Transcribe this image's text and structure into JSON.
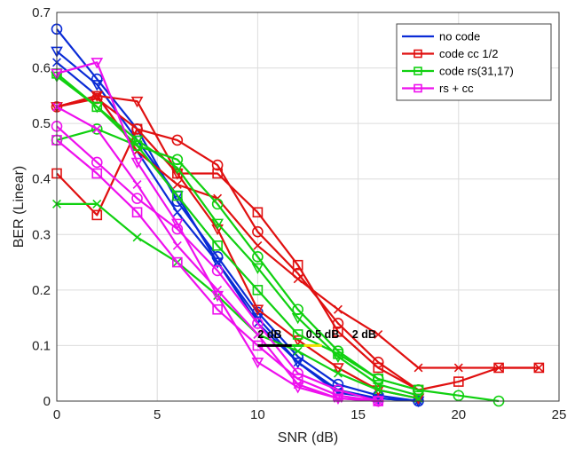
{
  "chart_data": {
    "type": "line",
    "xlabel": "SNR (dB)",
    "ylabel": "BER (Linear)",
    "xlim": [
      0,
      25
    ],
    "ylim": [
      0,
      0.7
    ],
    "x_ticks": [
      "0",
      "5",
      "10",
      "15",
      "20",
      "25"
    ],
    "y_ticks": [
      "0",
      "0.1",
      "0.2",
      "0.3",
      "0.4",
      "0.5",
      "0.6",
      "0.7"
    ],
    "grid": true,
    "legend_position": "top-right",
    "series": [
      {
        "name": "no code",
        "color": "#0a2bd6",
        "marker": "circle",
        "x": [
          0,
          2,
          4,
          6,
          8,
          10,
          12,
          14,
          16,
          18
        ],
        "y": [
          0.67,
          0.58,
          0.49,
          0.36,
          0.26,
          0.16,
          0.08,
          0.03,
          0.01,
          0.0
        ]
      },
      {
        "name": "no code",
        "color": "#0a2bd6",
        "marker": "triangle-down",
        "x": [
          0,
          2,
          4,
          6,
          8,
          10,
          12,
          14,
          16,
          18
        ],
        "y": [
          0.63,
          0.57,
          0.47,
          0.37,
          0.25,
          0.15,
          0.07,
          0.02,
          0.005,
          0.0
        ]
      },
      {
        "name": "no code",
        "color": "#0a2bd6",
        "marker": "x",
        "x": [
          0,
          2,
          4,
          6,
          8,
          10,
          12,
          14,
          16,
          18
        ],
        "y": [
          0.61,
          0.55,
          0.45,
          0.34,
          0.25,
          0.14,
          0.07,
          0.015,
          0.005,
          0.0
        ]
      },
      {
        "name": "code cc 1/2",
        "color": "#e01010",
        "marker": "square",
        "x": [
          0,
          2,
          4,
          6,
          8,
          10,
          12,
          14,
          16,
          18,
          20,
          22,
          24
        ],
        "y": [
          0.41,
          0.335,
          0.49,
          0.41,
          0.41,
          0.34,
          0.245,
          0.125,
          0.06,
          0.02,
          0.035,
          0.06,
          0.06
        ]
      },
      {
        "name": "code cc 1/2",
        "color": "#e01010",
        "marker": "circle",
        "x": [
          0,
          2,
          4,
          6,
          8,
          10,
          12,
          14,
          16,
          18
        ],
        "y": [
          0.53,
          0.545,
          0.49,
          0.47,
          0.425,
          0.305,
          0.23,
          0.14,
          0.07,
          0.02
        ]
      },
      {
        "name": "code cc 1/2",
        "color": "#e01010",
        "marker": "triangle-down",
        "x": [
          0,
          2,
          4,
          6,
          8,
          10,
          12,
          14,
          16,
          18
        ],
        "y": [
          0.53,
          0.55,
          0.54,
          0.41,
          0.31,
          0.165,
          0.11,
          0.06,
          0.02,
          0.005
        ]
      },
      {
        "name": "code cc 1/2",
        "color": "#e01010",
        "marker": "x",
        "x": [
          0,
          2,
          4,
          6,
          8,
          10,
          12,
          14,
          16,
          18,
          20,
          22,
          24
        ],
        "y": [
          0.53,
          0.55,
          0.45,
          0.39,
          0.365,
          0.28,
          0.22,
          0.165,
          0.12,
          0.06,
          0.06,
          0.06,
          0.06
        ]
      },
      {
        "name": "code rs(31,17)",
        "color": "#10d010",
        "marker": "square",
        "x": [
          0,
          2,
          4,
          6,
          8,
          10,
          12,
          14,
          16,
          18
        ],
        "y": [
          0.59,
          0.53,
          0.46,
          0.37,
          0.28,
          0.2,
          0.12,
          0.085,
          0.04,
          0.02
        ]
      },
      {
        "name": "code rs(31,17)",
        "color": "#10d010",
        "marker": "circle",
        "x": [
          0,
          2,
          4,
          6,
          8,
          10,
          12,
          14,
          16,
          18,
          20,
          22
        ],
        "y": [
          0.47,
          0.49,
          0.46,
          0.435,
          0.355,
          0.26,
          0.165,
          0.09,
          0.04,
          0.02,
          0.01,
          0.0
        ]
      },
      {
        "name": "code rs(31,17)",
        "color": "#10d010",
        "marker": "triangle-down",
        "x": [
          0,
          2,
          4,
          6,
          8,
          10,
          12,
          14,
          16,
          18
        ],
        "y": [
          0.585,
          0.53,
          0.47,
          0.42,
          0.32,
          0.24,
          0.15,
          0.08,
          0.03,
          0.01
        ]
      },
      {
        "name": "code rs(31,17)",
        "color": "#10d010",
        "marker": "x",
        "x": [
          0,
          2,
          4,
          6,
          8,
          10,
          12,
          14,
          16,
          18
        ],
        "y": [
          0.355,
          0.355,
          0.295,
          0.25,
          0.19,
          0.12,
          0.09,
          0.05,
          0.02,
          0.005
        ]
      },
      {
        "name": "rs + cc",
        "color": "#ee10ee",
        "marker": "square",
        "x": [
          0,
          2,
          4,
          6,
          8,
          10,
          12,
          14,
          16
        ],
        "y": [
          0.47,
          0.41,
          0.34,
          0.25,
          0.165,
          0.1,
          0.04,
          0.01,
          0.0
        ]
      },
      {
        "name": "rs + cc",
        "color": "#ee10ee",
        "marker": "circle",
        "x": [
          0,
          2,
          4,
          6,
          8,
          10,
          12,
          14,
          16
        ],
        "y": [
          0.495,
          0.43,
          0.365,
          0.31,
          0.235,
          0.14,
          0.05,
          0.02,
          0.0
        ]
      },
      {
        "name": "rs + cc",
        "color": "#ee10ee",
        "marker": "triangle-down",
        "x": [
          0,
          2,
          4,
          6,
          8,
          10,
          12,
          14,
          16
        ],
        "y": [
          0.59,
          0.61,
          0.43,
          0.32,
          0.19,
          0.07,
          0.025,
          0.005,
          0.0
        ]
      },
      {
        "name": "rs + cc",
        "color": "#ee10ee",
        "marker": "x",
        "x": [
          0,
          2,
          4,
          6,
          8,
          10,
          12,
          14,
          16
        ],
        "y": [
          0.53,
          0.49,
          0.39,
          0.28,
          0.2,
          0.12,
          0.03,
          0.005,
          0.0
        ]
      }
    ],
    "legend": [
      {
        "name": "no code",
        "color": "#0a2bd6",
        "marker": "none"
      },
      {
        "name": "code cc 1/2",
        "color": "#e01010",
        "marker": "square"
      },
      {
        "name": "code rs(31,17)",
        "color": "#10d010",
        "marker": "square"
      },
      {
        "name": "rs + cc",
        "color": "#ee10ee",
        "marker": "square"
      }
    ],
    "annotations": [
      {
        "text": "2 dB",
        "x": 10,
        "y": 0.12
      },
      {
        "text": "0.5 dB",
        "x": 12.4,
        "y": 0.12
      },
      {
        "text": "2 dB",
        "x": 14.7,
        "y": 0.12
      }
    ],
    "annotation_segments": [
      {
        "x0": 10,
        "x1": 11.7,
        "y": 0.1,
        "color": "#000000"
      },
      {
        "x0": 11.7,
        "x1": 12.3,
        "y": 0.1,
        "color": "#10d010"
      },
      {
        "x0": 12.3,
        "x1": 13.2,
        "y": 0.1,
        "color": "#f0e000"
      }
    ]
  }
}
